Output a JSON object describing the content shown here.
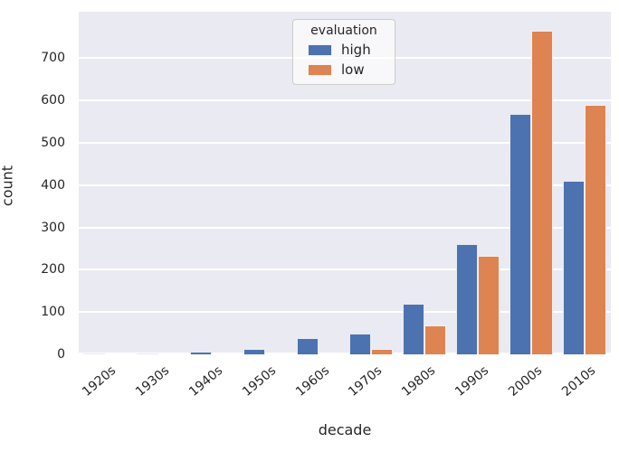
{
  "chart_data": {
    "type": "bar",
    "title": "",
    "xlabel": "decade",
    "ylabel": "count",
    "categories": [
      "1920s",
      "1930s",
      "1940s",
      "1950s",
      "1960s",
      "1970s",
      "1980s",
      "1990s",
      "2000s",
      "2010s"
    ],
    "series": [
      {
        "name": "high",
        "color": "#4c72b0",
        "values": [
          1,
          2,
          7,
          12,
          38,
          50,
          120,
          260,
          568,
          410
        ]
      },
      {
        "name": "low",
        "color": "#dd8452",
        "values": [
          0,
          0,
          0,
          0,
          0,
          13,
          68,
          232,
          765,
          590
        ]
      }
    ],
    "yticks": [
      0,
      100,
      200,
      300,
      400,
      500,
      600,
      700
    ],
    "ylim": [
      0,
      810
    ],
    "grid": "horizontal-white-lines",
    "legend": {
      "title": "evaluation",
      "position": "upper-center",
      "entries": [
        "high",
        "low"
      ]
    },
    "colors": {
      "plot_background": "#eaeaf2",
      "gridline": "#ffffff",
      "text": "#262626",
      "high": "#4c72b0",
      "low": "#dd8452"
    }
  }
}
